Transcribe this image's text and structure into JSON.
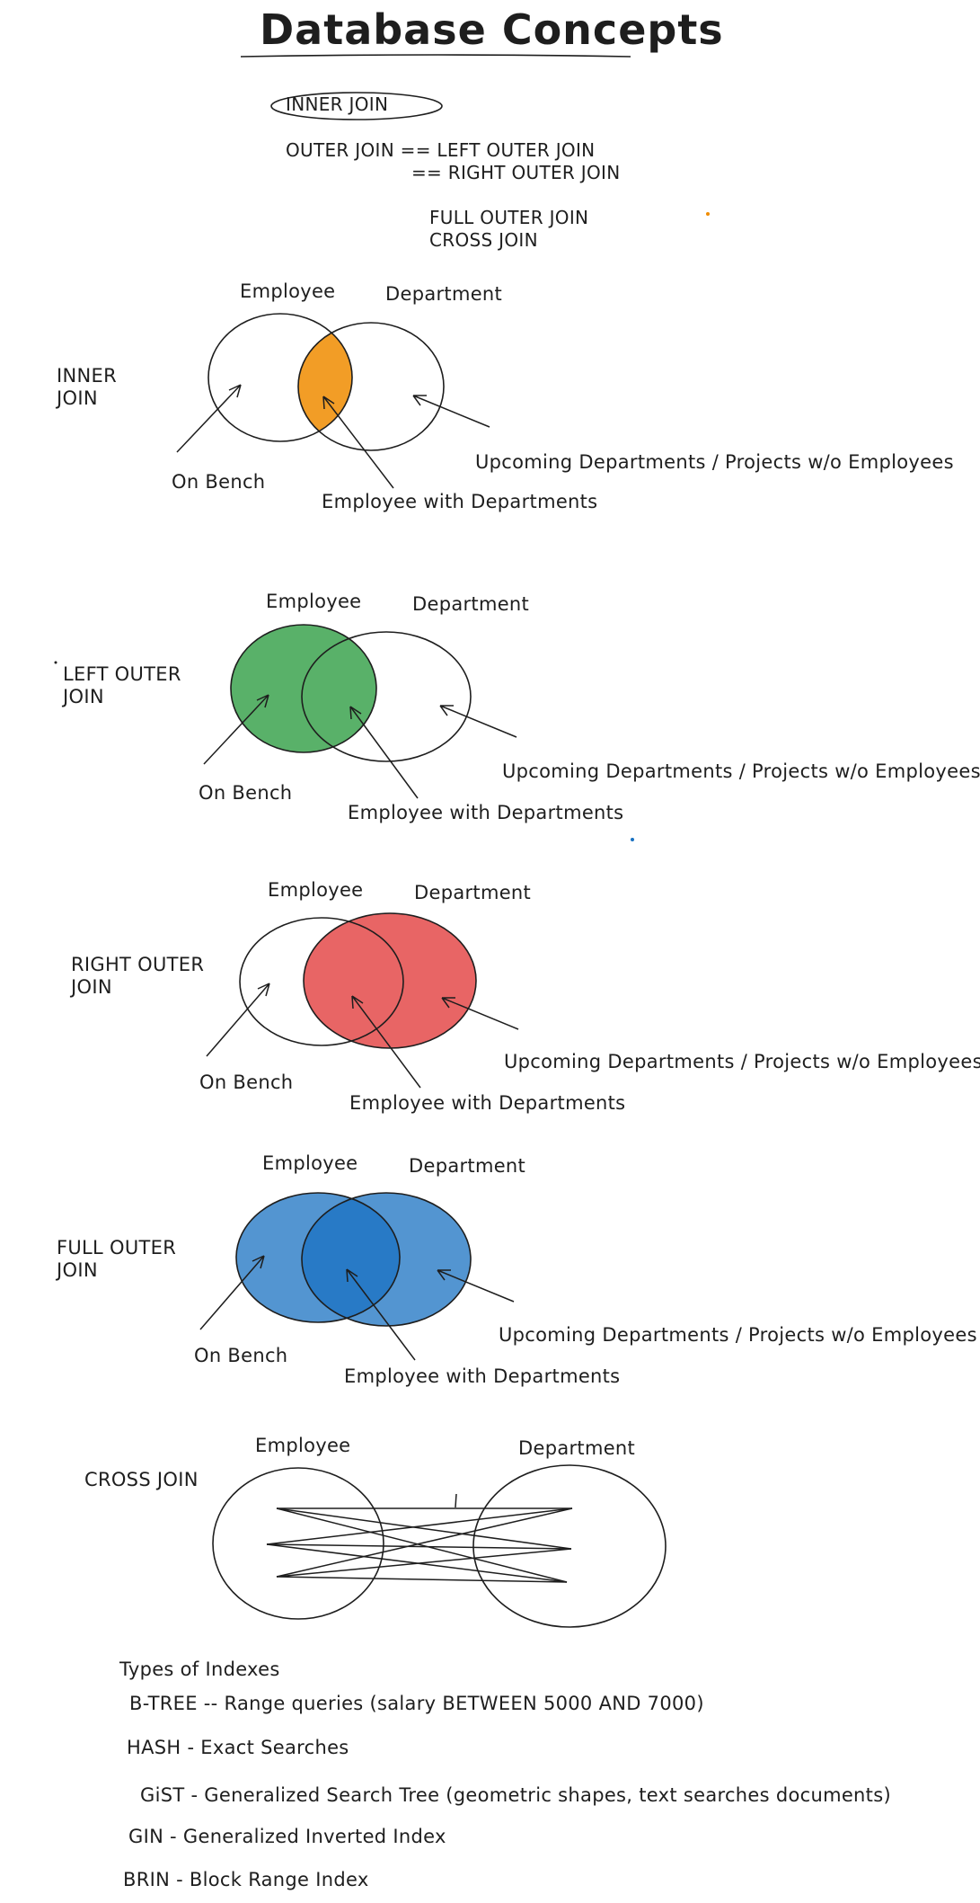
{
  "title": "Database Concepts",
  "overview": {
    "inner_join": "INNER JOIN",
    "outer_join_line1": "OUTER JOIN == LEFT OUTER JOIN",
    "outer_join_line2": "== RIGHT OUTER JOIN",
    "full_outer_join": "FULL OUTER JOIN",
    "cross_join": "CROSS JOIN"
  },
  "diagrams": [
    {
      "label_line1": "INNER",
      "label_line2": "JOIN",
      "employee": "Employee",
      "department": "Department",
      "on_bench": "On Bench",
      "with_departments": "Employee with Departments",
      "upcoming": "Upcoming Departments / Projects w/o Employees",
      "fill_region": "intersection",
      "fill_color": "#f08c00"
    },
    {
      "label_line1": "LEFT OUTER",
      "label_line2": "JOIN",
      "employee": "Employee",
      "department": "Department",
      "on_bench": "On Bench",
      "with_departments": "Employee with Departments",
      "upcoming": "Upcoming Departments / Projects w/o Employees",
      "fill_region": "left",
      "fill_color": "#2f9e44"
    },
    {
      "label_line1": "RIGHT OUTER",
      "label_line2": "JOIN",
      "employee": "Employee",
      "department": "Department",
      "on_bench": "On Bench",
      "with_departments": "Employee with Departments",
      "upcoming": "Upcoming Departments / Projects w/o Employees",
      "fill_region": "right",
      "fill_color": "#e03131"
    },
    {
      "label_line1": "FULL OUTER",
      "label_line2": "JOIN",
      "employee": "Employee",
      "department": "Department",
      "on_bench": "On Bench",
      "with_departments": "Employee with Departments",
      "upcoming": "Upcoming Departments / Projects w/o Employees",
      "fill_region": "both",
      "fill_color": "#1971c2"
    }
  ],
  "cross": {
    "label": "CROSS JOIN",
    "employee": "Employee",
    "department": "Department"
  },
  "indexes": {
    "heading": "Types of Indexes",
    "items": [
      "B-TREE  -- Range queries (salary BETWEEN 5000 AND 7000)",
      "HASH - Exact Searches",
      "GiST - Generalized Search Tree (geometric shapes, text searches documents)",
      "GIN - Generalized Inverted Index",
      "BRIN - Block Range Index"
    ]
  }
}
